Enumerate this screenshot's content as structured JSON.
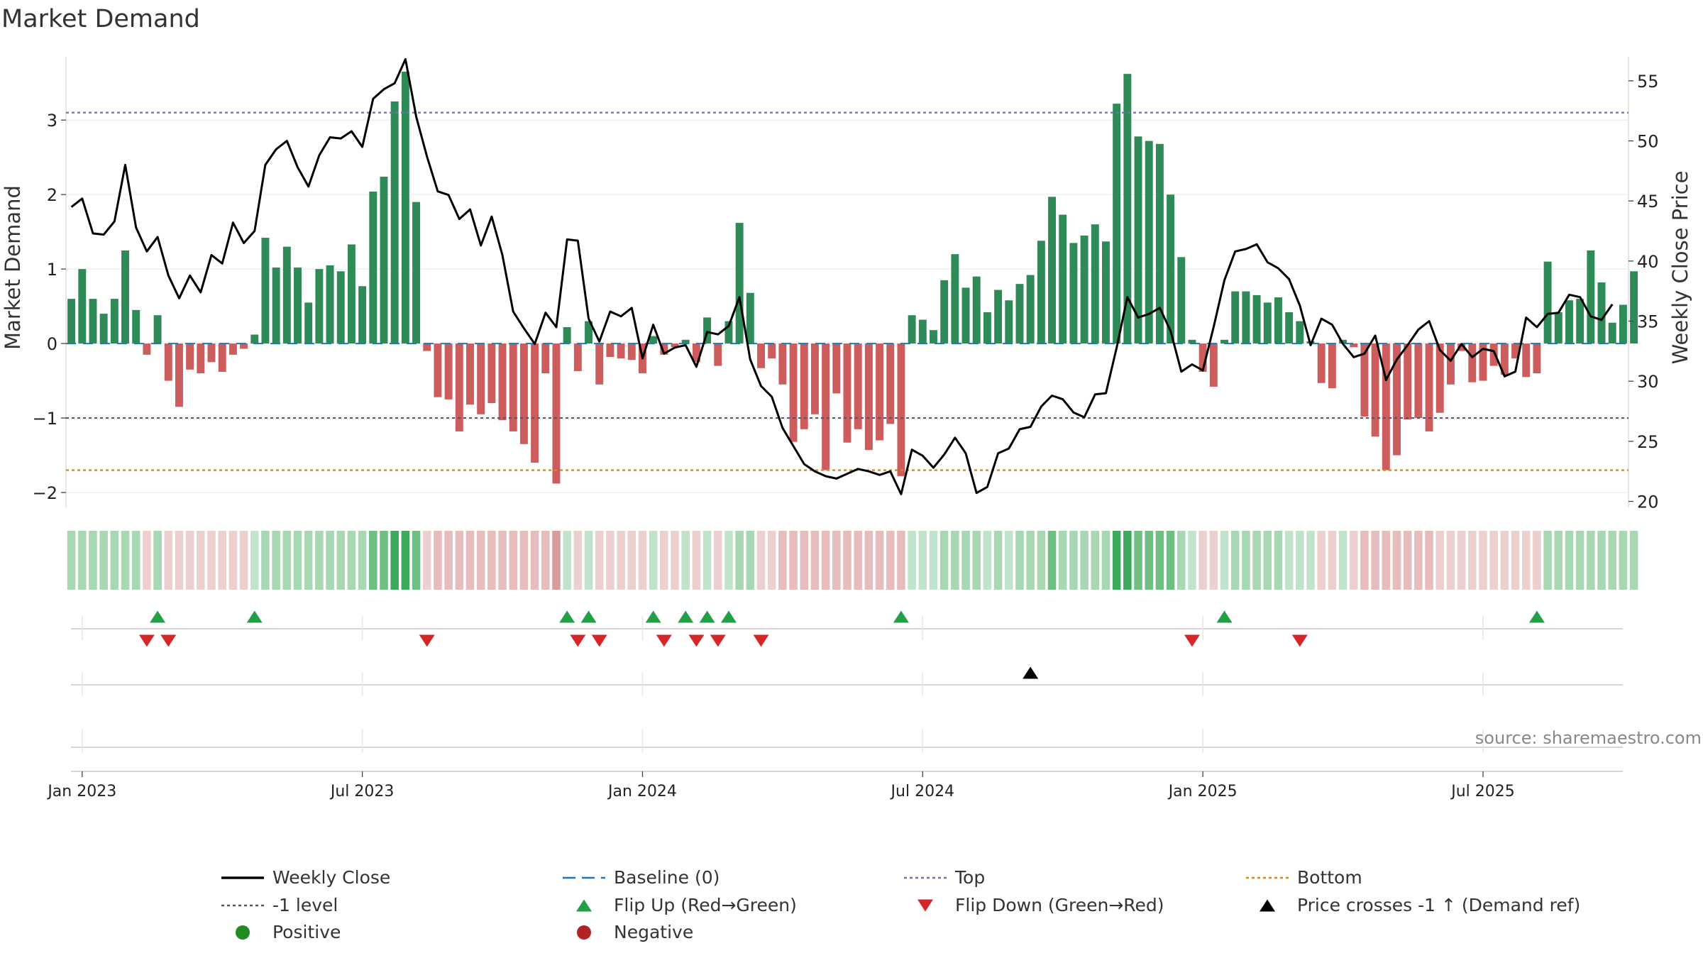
{
  "chart_data": {
    "type": "bar",
    "title": "Market Demand",
    "ylabel_left": "Market Demand",
    "ylabel_right": "Weekly Close Price",
    "ylim_left": [
      -2.2,
      3.85
    ],
    "ylim_right": [
      19.5,
      57.0
    ],
    "yticks_left": [
      {
        "v": 3,
        "label": "3"
      },
      {
        "v": 2,
        "label": "2"
      },
      {
        "v": 1,
        "label": "1"
      },
      {
        "v": 0,
        "label": "0"
      },
      {
        "v": -1,
        "label": "−1"
      },
      {
        "v": -2,
        "label": "−2"
      }
    ],
    "yticks_right": [
      {
        "v": 55,
        "label": "55"
      },
      {
        "v": 50,
        "label": "50"
      },
      {
        "v": 45,
        "label": "45"
      },
      {
        "v": 40,
        "label": "40"
      },
      {
        "v": 35,
        "label": "35"
      },
      {
        "v": 30,
        "label": "30"
      },
      {
        "v": 25,
        "label": "25"
      },
      {
        "v": 20,
        "label": "20"
      }
    ],
    "xticks": [
      {
        "week": 1.5,
        "label": "Jan 2023"
      },
      {
        "week": 27.5,
        "label": "Jul 2023"
      },
      {
        "week": 53.5,
        "label": "Jan 2024"
      },
      {
        "week": 79.5,
        "label": "Jul 2024"
      },
      {
        "week": 105.5,
        "label": "Jan 2025"
      },
      {
        "week": 131.5,
        "label": "Jul 2025"
      }
    ],
    "weeks": 145,
    "levels": {
      "top": 3.1,
      "bottom": -1.7,
      "minus_one": -1
    },
    "demand": [
      0.6,
      1.0,
      0.6,
      0.4,
      0.6,
      1.25,
      0.45,
      -0.15,
      0.38,
      -0.5,
      -0.85,
      -0.35,
      -0.4,
      -0.25,
      -0.38,
      -0.15,
      -0.07,
      0.12,
      1.42,
      1.02,
      1.3,
      1.02,
      0.55,
      1.0,
      1.05,
      0.97,
      1.33,
      0.77,
      2.04,
      2.24,
      3.25,
      3.65,
      1.9,
      -0.1,
      -0.72,
      -0.75,
      -1.18,
      -0.82,
      -0.95,
      -0.8,
      -1.03,
      -1.18,
      -1.35,
      -1.6,
      -0.4,
      -1.88,
      0.22,
      -0.37,
      0.3,
      -0.55,
      -0.18,
      -0.2,
      -0.22,
      -0.4,
      0.1,
      -0.15,
      -0.05,
      0.05,
      -0.25,
      0.35,
      -0.3,
      0.3,
      1.62,
      0.68,
      -0.33,
      -0.2,
      -0.55,
      -1.32,
      -1.15,
      -0.95,
      -1.7,
      -0.67,
      -1.33,
      -1.15,
      -1.43,
      -1.3,
      -1.08,
      -1.78,
      0.38,
      0.32,
      0.18,
      0.85,
      1.2,
      0.75,
      0.9,
      0.42,
      0.72,
      0.58,
      0.8,
      0.92,
      1.38,
      1.97,
      1.73,
      1.35,
      1.45,
      1.6,
      1.37,
      3.22,
      3.62,
      2.78,
      2.72,
      2.68,
      2.0,
      1.16,
      0.05,
      -0.38,
      -0.58,
      0.05,
      0.7,
      0.7,
      0.65,
      0.55,
      0.62,
      0.42,
      0.3,
      0.03,
      -0.53,
      -0.6,
      0.05,
      -0.05,
      -0.98,
      -1.25,
      -1.7,
      -1.5,
      -1.02,
      -1.0,
      -1.18,
      -0.93,
      -0.55,
      -0.1,
      -0.52,
      -0.5,
      -0.3,
      -0.42,
      -0.2,
      -0.45,
      -0.4,
      1.1,
      0.42,
      0.58,
      0.6,
      1.25,
      0.82,
      0.28,
      0.52,
      0.97
    ],
    "series": [
      {
        "name": "Weekly Close",
        "values": [
          44.5,
          45.2,
          42.3,
          42.2,
          43.3,
          48.0,
          42.8,
          40.8,
          42.0,
          38.8,
          36.9,
          38.8,
          37.4,
          40.5,
          39.8,
          43.2,
          41.5,
          42.5,
          48.0,
          49.3,
          50.0,
          47.8,
          46.2,
          48.8,
          50.3,
          50.2,
          50.8,
          49.5,
          53.5,
          54.3,
          54.8,
          56.8,
          52.0,
          48.7,
          45.8,
          45.5,
          43.5,
          44.3,
          41.3,
          43.7,
          40.5,
          35.8,
          34.4,
          33.1,
          35.7,
          34.5,
          41.8,
          41.7,
          35.2,
          33.3,
          35.8,
          35.4,
          36.1,
          31.9,
          34.7,
          32.3,
          32.8,
          33.0,
          31.2,
          34.1,
          33.9,
          34.6,
          37.0,
          31.8,
          29.6,
          28.7,
          26.1,
          24.6,
          23.1,
          22.5,
          22.1,
          21.9,
          22.3,
          22.7,
          22.5,
          22.2,
          22.5,
          20.6,
          24.3,
          23.8,
          22.8,
          23.9,
          25.3,
          24.0,
          20.7,
          21.2,
          24.0,
          24.4,
          26.0,
          26.2,
          27.9,
          28.8,
          28.5,
          27.4,
          27.0,
          28.9,
          29.0,
          32.8,
          37.0,
          35.3,
          35.6,
          36.1,
          34.2,
          30.8,
          31.4,
          30.9,
          34.5,
          38.4,
          40.8,
          41.0,
          41.4,
          39.9,
          39.4,
          38.5,
          36.3,
          33.0,
          35.2,
          34.7,
          33.1,
          32.0,
          32.3,
          33.8,
          30.1,
          31.8,
          33.0,
          34.3,
          35.0,
          32.6,
          31.7,
          33.1,
          32.0,
          32.7,
          32.5,
          30.4,
          30.8,
          35.3,
          34.5,
          35.6,
          35.7,
          37.2,
          37.0,
          35.4,
          35.1,
          36.4
        ]
      },
      {
        "name": "Baseline (0)"
      }
    ],
    "strip_shades": [
      2,
      2,
      2,
      2,
      2,
      2,
      2,
      -1,
      2,
      -1,
      -1,
      -1,
      -1,
      -1,
      -1,
      -1,
      -1,
      1,
      2,
      2,
      2,
      2,
      2,
      2,
      2,
      2,
      2,
      2,
      3,
      3,
      4,
      4,
      3,
      -1,
      -2,
      -2,
      -2,
      -2,
      -2,
      -2,
      -2,
      -2,
      -2,
      -2,
      -2,
      -3,
      1,
      -1,
      1,
      -1,
      -1,
      -1,
      -1,
      -1,
      1,
      -1,
      -1,
      1,
      -1,
      1,
      -1,
      1,
      2,
      2,
      -1,
      -1,
      -2,
      -2,
      -2,
      -2,
      -2,
      -2,
      -2,
      -2,
      -2,
      -2,
      -2,
      -2,
      1,
      1,
      1,
      2,
      2,
      2,
      2,
      1,
      2,
      1,
      2,
      2,
      2,
      3,
      2,
      2,
      2,
      2,
      2,
      4,
      4,
      3,
      3,
      3,
      3,
      2,
      1,
      -1,
      -1,
      1,
      2,
      2,
      2,
      2,
      2,
      1,
      1,
      1,
      -1,
      -1,
      1,
      -1,
      -2,
      -2,
      -2,
      -2,
      -2,
      -2,
      -2,
      -1,
      -1,
      -1,
      -1,
      -1,
      -1,
      -1,
      -1,
      -1,
      -1,
      2,
      2,
      2,
      2,
      2,
      2,
      2,
      2,
      2
    ],
    "flip_up_weeks": [
      8,
      17,
      46,
      48,
      54,
      57,
      59,
      61,
      77,
      107,
      136
    ],
    "flip_down_weeks": [
      7,
      9,
      33,
      47,
      49,
      55,
      58,
      60,
      64,
      104,
      114
    ],
    "cross_weeks": [
      89
    ],
    "colors": {
      "positive": "#2e8b57",
      "negative": "#cd5c5c",
      "price": "#000000",
      "baseline": "#1f77b4",
      "top": "#7570b3",
      "bottom": "#e0861a",
      "minus_one": "#555566",
      "flip_up": "#22a045",
      "flip_down": "#d62728",
      "cross": "#000000"
    },
    "legend": [
      {
        "label": "Weekly Close",
        "kind": "line",
        "color": "#000000"
      },
      {
        "label": "Baseline (0)",
        "kind": "dash",
        "color": "#1f77b4"
      },
      {
        "label": "Top",
        "kind": "dot",
        "color": "#7570b3"
      },
      {
        "label": "Bottom",
        "kind": "dot",
        "color": "#e0861a"
      },
      {
        "label": "-1 level",
        "kind": "dot",
        "color": "#555566"
      },
      {
        "label": "Flip Up (Red→Green)",
        "kind": "tri-up",
        "color": "#22a045"
      },
      {
        "label": "Flip Down (Green→Red)",
        "kind": "tri-down",
        "color": "#d62728"
      },
      {
        "label": "Price crosses -1 ↑ (Demand ref)",
        "kind": "tri-up",
        "color": "#000000"
      },
      {
        "label": "Positive",
        "kind": "circle",
        "color": "#228b22"
      },
      {
        "label": "Negative",
        "kind": "circle",
        "color": "#b22222"
      }
    ],
    "source": "source: sharemaestro.com"
  }
}
